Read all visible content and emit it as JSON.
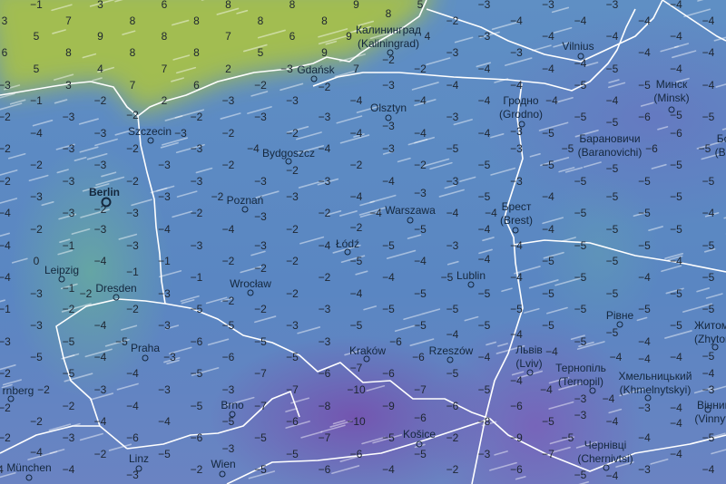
{
  "map": {
    "layer": "temperature",
    "unit": "°C",
    "colors": {
      "warm": "#a8c24a",
      "mild": "#6ab48c",
      "cool": "#5a86c2",
      "cold": "#7a5aac",
      "borders": "#ffffff",
      "labels": "#14273d"
    },
    "temperature_grid": [
      [
        -1,
        3,
        6,
        8,
        8,
        9,
        5,
        -3,
        -3,
        -3,
        -4
      ],
      [
        3,
        7,
        8,
        8,
        8,
        8,
        8,
        -2,
        -4,
        -4,
        -4,
        -4
      ],
      [
        5,
        9,
        8,
        7,
        6,
        9,
        4,
        -3,
        -4,
        -4,
        -4
      ],
      [
        6,
        8,
        8,
        8,
        5,
        9,
        -2,
        -3,
        -3,
        -4,
        -4,
        -4
      ],
      [
        5,
        4,
        7,
        2,
        -3,
        7,
        -2,
        -4,
        -4,
        -5,
        -4
      ],
      [
        -3,
        3,
        7,
        6,
        -2,
        -2,
        -3,
        -4,
        -4,
        -5,
        -5,
        -4
      ],
      [
        -1,
        -2,
        2,
        -3,
        -3,
        -4,
        -4,
        -4,
        -4,
        -4,
        -5
      ],
      [
        -2,
        -3,
        -2,
        -2,
        -3,
        -3,
        -3,
        -3,
        -3,
        -5,
        -6,
        -5
      ],
      [
        -4,
        -3,
        -3,
        -2,
        -2,
        -4,
        -4,
        -4,
        -5,
        -5,
        -6
      ],
      [
        -2,
        -3,
        -2,
        -3,
        -4,
        -4,
        -3,
        -5,
        -3,
        -5,
        -6,
        -5
      ],
      [
        -2,
        -3,
        -3,
        -2,
        -2,
        -2,
        -2,
        -5,
        -5,
        -5,
        -5
      ],
      [
        -2,
        -3,
        -2,
        -3,
        -3,
        -3,
        -4,
        -3,
        -3,
        -5,
        -5,
        -5
      ],
      [
        -3,
        -2,
        -3,
        -2,
        -3,
        -4,
        -3,
        -5,
        -4,
        -5,
        -5
      ],
      [
        -4,
        -3,
        -3,
        -2,
        -3,
        -2,
        -4,
        -4,
        -4,
        -5,
        -5,
        -4
      ],
      [
        -2,
        -3,
        -4,
        -4,
        -2,
        -2,
        -5,
        -4,
        -4,
        -5,
        -5
      ],
      [
        -4,
        -1,
        -3,
        -3,
        -3,
        -4,
        -5,
        -3,
        -4,
        -5,
        -5,
        -5
      ],
      [
        0,
        -4,
        -1,
        -2,
        -2,
        -5,
        -4,
        -4,
        -5,
        -5,
        -4
      ],
      [
        -4,
        -1,
        -1,
        -1,
        -2,
        -2,
        -4,
        -5,
        -4,
        -5,
        -4,
        -5
      ],
      [
        -3,
        -2,
        -3,
        -2,
        -2,
        -4,
        -5,
        -5,
        -5,
        -5,
        -5
      ],
      [
        -1,
        -2,
        -2,
        -5,
        -2,
        -3,
        -5,
        -5,
        -5,
        -5,
        -5,
        -5
      ],
      [
        -3,
        -4,
        -3,
        -5,
        -3,
        -5,
        -5,
        -5,
        -5,
        -5,
        -5
      ],
      [
        -3,
        -5,
        -5,
        -6,
        -5,
        -3,
        -6,
        -4,
        -4,
        -5,
        -4,
        -5
      ],
      [
        -5,
        -4,
        -3,
        -6,
        -5,
        -7,
        -6,
        -4,
        -4,
        -4,
        -4
      ],
      [
        -2,
        -5,
        -4,
        -5,
        -7,
        -6,
        -6,
        -5,
        -4,
        -3,
        -4,
        -4
      ],
      [
        -2,
        -3,
        -3,
        -3,
        -7,
        -10,
        -7,
        -5,
        -4,
        -4,
        -4
      ],
      [
        -2,
        -2,
        -4,
        -5,
        -7,
        -8,
        -9,
        -6,
        -6,
        -3,
        -3,
        -3
      ],
      [
        -2,
        -4,
        -4,
        -5,
        -6,
        -10,
        -6,
        -8,
        -5,
        -4,
        -4
      ],
      [
        -2,
        -3,
        -6,
        -6,
        -5,
        -7,
        -5,
        -2,
        -9,
        -5,
        -4,
        -5
      ],
      [
        -4,
        -2,
        -5,
        -3,
        -5,
        -6,
        -5,
        -3,
        -7,
        -4,
        -4
      ],
      [
        -4,
        -4,
        -3,
        -2,
        -5,
        -6,
        -4,
        -2,
        -6,
        -5,
        -3,
        -4
      ]
    ],
    "cities": [
      {
        "name": "Калининград",
        "alt": "(Kaliningrad)"
      },
      {
        "name": "Gdańsk",
        "alt": ""
      },
      {
        "name": "Olsztyn",
        "alt": ""
      },
      {
        "name": "Vilnius",
        "alt": ""
      },
      {
        "name": "Гродно",
        "alt": "(Grodno)"
      },
      {
        "name": "Минск",
        "alt": "(Minsk)"
      },
      {
        "name": "Барановичи",
        "alt": "(Baranovichi)"
      },
      {
        "name": "Бо",
        "alt": "(Ba"
      },
      {
        "name": "Szczecin",
        "alt": ""
      },
      {
        "name": "Bydgoszcz",
        "alt": ""
      },
      {
        "name": "Berlin",
        "alt": "",
        "capital": true
      },
      {
        "name": "Poznań",
        "alt": ""
      },
      {
        "name": "Warszawa",
        "alt": ""
      },
      {
        "name": "Брест",
        "alt": "(Brest)"
      },
      {
        "name": "Łódź",
        "alt": ""
      },
      {
        "name": "Leipzig",
        "alt": ""
      },
      {
        "name": "Lublin",
        "alt": ""
      },
      {
        "name": "Dresden",
        "alt": ""
      },
      {
        "name": "Wrocław",
        "alt": ""
      },
      {
        "name": "Рівне",
        "alt": ""
      },
      {
        "name": "Житом",
        "alt": "(Zhytor"
      },
      {
        "name": "Praha",
        "alt": ""
      },
      {
        "name": "Kraków",
        "alt": ""
      },
      {
        "name": "Rzeszów",
        "alt": ""
      },
      {
        "name": "Львів",
        "alt": "(Lviv)"
      },
      {
        "name": "Тернопіль",
        "alt": "(Ternopil)"
      },
      {
        "name": "Хмельницький",
        "alt": "(Khmelnytskyi)"
      },
      {
        "name": "Вінниця",
        "alt": "(Vinnytsy"
      },
      {
        "name": "rnberg",
        "alt": ""
      },
      {
        "name": "Brno",
        "alt": ""
      },
      {
        "name": "Košice",
        "alt": ""
      },
      {
        "name": "Чернівці",
        "alt": "(Chernivtsi)"
      },
      {
        "name": "Linz",
        "alt": ""
      },
      {
        "name": "Wien",
        "alt": ""
      },
      {
        "name": "München",
        "alt": ""
      }
    ]
  }
}
